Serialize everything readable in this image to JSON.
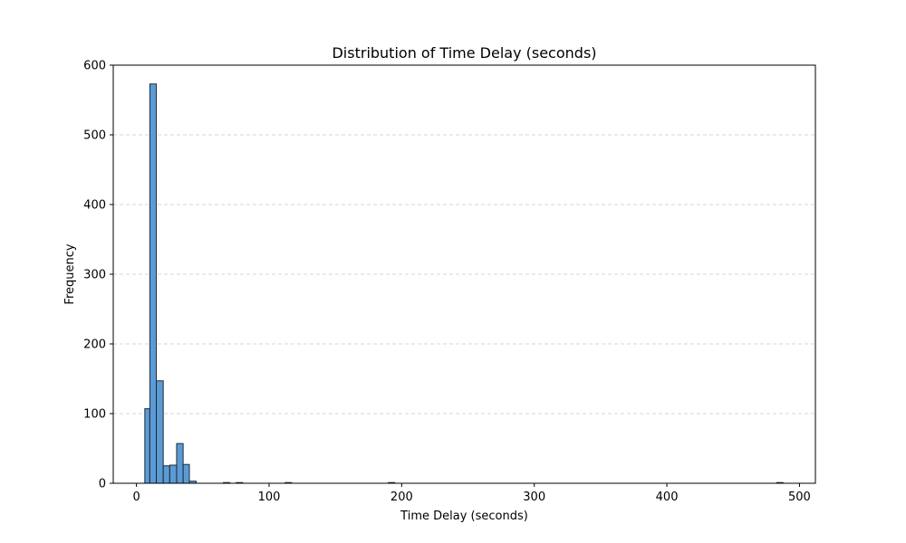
{
  "chart_data": {
    "type": "bar",
    "title": "Distribution of Time Delay (seconds)",
    "xlabel": "Time Delay (seconds)",
    "ylabel": "Frequency",
    "xlim": [
      -17.5,
      512
    ],
    "ylim": [
      0,
      600
    ],
    "x_ticks": [
      0,
      100,
      200,
      300,
      400,
      500
    ],
    "y_ticks": [
      0,
      100,
      200,
      300,
      400,
      500,
      600
    ],
    "grid": "y-dashed",
    "bar_color": "#5b9bd5",
    "edge_color": "#1f2a36",
    "grid_color": "#c8c8c8",
    "bins": [
      {
        "x0": 6.3,
        "x1": 10.1,
        "count": 107
      },
      {
        "x0": 10.1,
        "x1": 15.0,
        "count": 573
      },
      {
        "x0": 15.0,
        "x1": 20.2,
        "count": 147
      },
      {
        "x0": 20.2,
        "x1": 25.1,
        "count": 25
      },
      {
        "x0": 25.1,
        "x1": 30.3,
        "count": 26
      },
      {
        "x0": 30.3,
        "x1": 35.2,
        "count": 57
      },
      {
        "x0": 35.2,
        "x1": 39.9,
        "count": 27
      },
      {
        "x0": 39.9,
        "x1": 45.0,
        "count": 3
      },
      {
        "x0": 65.5,
        "x1": 70.4,
        "count": 1
      },
      {
        "x0": 75.2,
        "x1": 80.1,
        "count": 1
      },
      {
        "x0": 112.1,
        "x1": 117.0,
        "count": 1
      },
      {
        "x0": 189.9,
        "x1": 194.8,
        "count": 1
      },
      {
        "x0": 482.7,
        "x1": 487.6,
        "count": 1
      }
    ]
  }
}
